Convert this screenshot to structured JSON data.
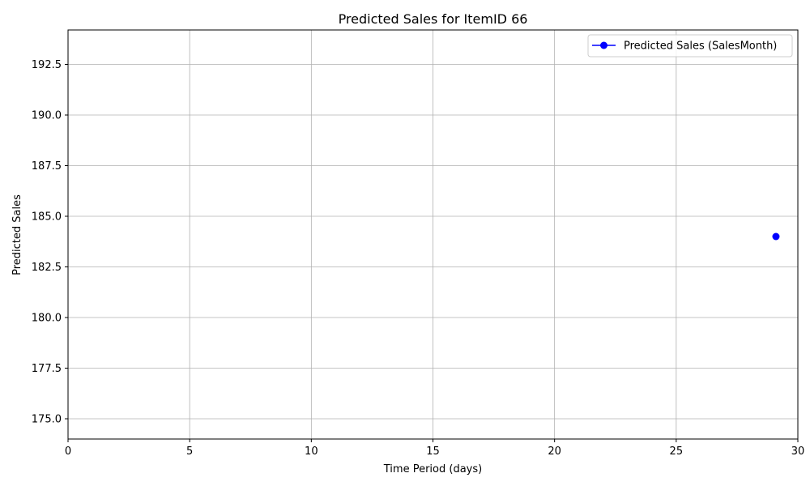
{
  "chart_data": {
    "type": "line",
    "title": "Predicted Sales for ItemID 66",
    "xlabel": "Time Period (days)",
    "ylabel": "Predicted Sales",
    "xlim": [
      0,
      30
    ],
    "ylim": [
      174,
      194.2
    ],
    "xticks": [
      0,
      5,
      10,
      15,
      20,
      25,
      30
    ],
    "yticks": [
      175.0,
      177.5,
      180.0,
      182.5,
      185.0,
      187.5,
      190.0,
      192.5
    ],
    "xtick_labels": [
      "0",
      "5",
      "10",
      "15",
      "20",
      "25",
      "30"
    ],
    "ytick_labels": [
      "175.0",
      "177.5",
      "180.0",
      "182.5",
      "185.0",
      "187.5",
      "190.0",
      "192.5"
    ],
    "grid": true,
    "legend": {
      "placement": "top-right"
    },
    "series": [
      {
        "name": "Predicted Sales (SalesMonth)",
        "color": "#0000ff",
        "marker": "circle",
        "x": [
          29.1
        ],
        "y": [
          184.0
        ]
      }
    ]
  }
}
